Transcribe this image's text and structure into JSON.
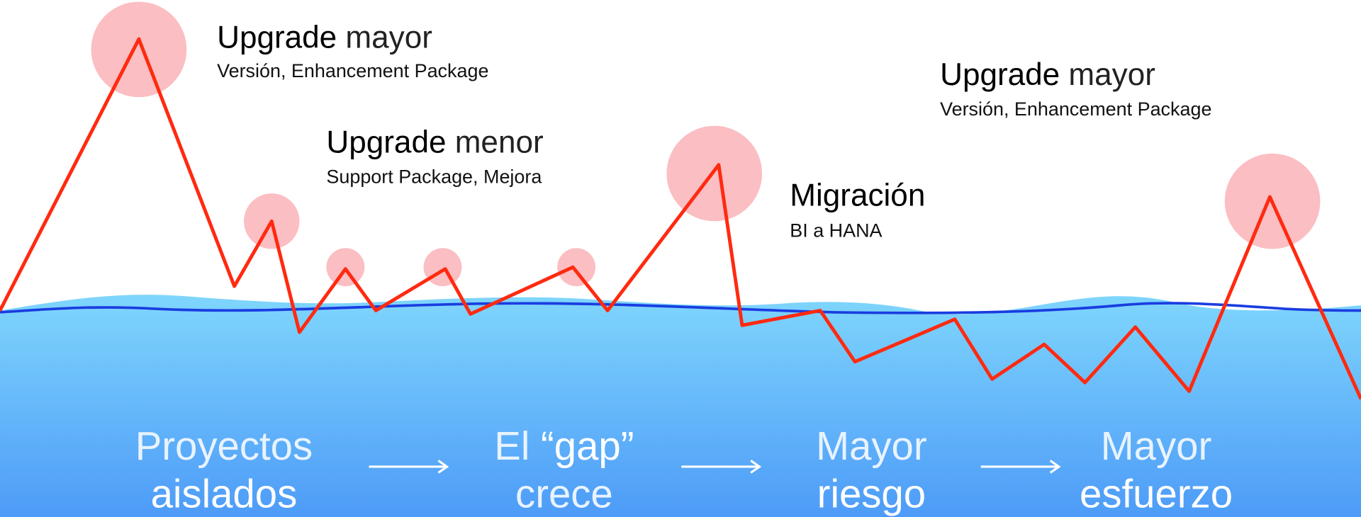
{
  "labels": [
    {
      "strong": "Upgrade",
      "rest": "mayor",
      "sub": "Versión, Enhancement Package"
    },
    {
      "strong": "Upgrade",
      "rest": "menor",
      "sub": "Support Package, Mejora"
    },
    {
      "strong": "Migración",
      "rest": "",
      "sub": "BI a HANA"
    },
    {
      "strong": "Upgrade",
      "rest": "mayor",
      "sub": "Versión, Enhancement Package"
    }
  ],
  "stages": [
    {
      "line1": "Proyectos",
      "line2": "aislados"
    },
    {
      "line1": "El",
      "line1_strong": "“gap”",
      "line2": "crece"
    },
    {
      "line1": "Mayor",
      "line2": "riesgo"
    },
    {
      "line1": "Mayor",
      "line2": "esfuerzo"
    }
  ]
}
